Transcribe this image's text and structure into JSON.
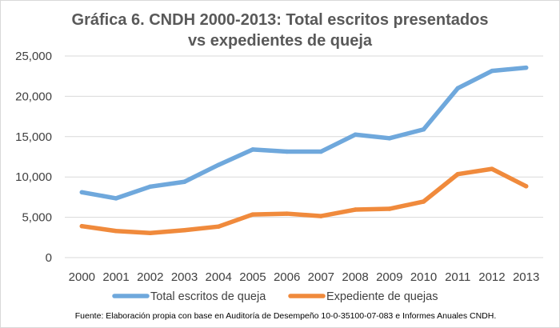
{
  "chart_data": {
    "type": "line",
    "title": "Gráfica 6. CNDH 2000-2013: Total escritos presentados vs expedientes de queja",
    "title_lines": [
      "Gráfica 6. CNDH 2000-2013: Total escritos presentados",
      "vs expedientes de queja"
    ],
    "categories": [
      "2000",
      "2001",
      "2002",
      "2003",
      "2004",
      "2005",
      "2006",
      "2007",
      "2008",
      "2009",
      "2010",
      "2011",
      "2012",
      "2013"
    ],
    "ylim": [
      0,
      25000
    ],
    "yticks": [
      0,
      5000,
      10000,
      15000,
      20000,
      25000
    ],
    "ytick_labels": [
      "0",
      "5,000",
      "10,000",
      "15,000",
      "20,000",
      "25,000"
    ],
    "grid": true,
    "legend_position": "bottom",
    "xlabel": "",
    "ylabel": "",
    "series": [
      {
        "name": "Total escritos de queja",
        "color": "#6fa8dc",
        "values": [
          8100,
          7350,
          8800,
          9400,
          11500,
          13400,
          13150,
          13150,
          15250,
          14800,
          15900,
          21000,
          23150,
          23550
        ]
      },
      {
        "name": "Expediente de quejas",
        "color": "#f08a3c",
        "values": [
          3900,
          3300,
          3050,
          3400,
          3850,
          5350,
          5450,
          5150,
          5950,
          6050,
          6950,
          10350,
          11000,
          8850
        ]
      }
    ],
    "source": "Fuente: Elaboración propia con base en Auditoría de Desempeño 10-0-35100-07-083 e Informes Anuales CNDH."
  }
}
